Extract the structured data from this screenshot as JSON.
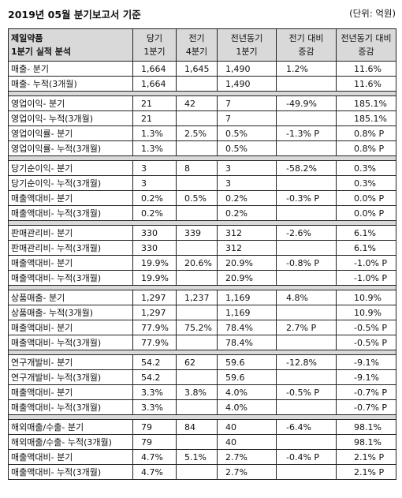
{
  "header": {
    "title": "2019년 05월 분기보고서 기준",
    "unit": "(단위: 억원)"
  },
  "columns": {
    "col0_line1": "제일약품",
    "col0_line2": "1분기 실적 분석",
    "col1_line1": "당기",
    "col1_line2": "1분기",
    "col2_line1": "전기",
    "col2_line2": "4분기",
    "col3_line1": "전년동기",
    "col3_line2": "1분기",
    "col4_line1": "전기 대비",
    "col4_line2": "증감",
    "col5_line1": "전년동기 대비",
    "col5_line2": "증감"
  },
  "groups": [
    {
      "rows": [
        [
          "매출- 분기",
          "1,664",
          "1,645",
          "1,490",
          "1.2%",
          "11.6%"
        ],
        [
          "매출- 누적(3개월)",
          "1,664",
          "",
          "1,490",
          "",
          "11.6%"
        ]
      ]
    },
    {
      "rows": [
        [
          "영업이익- 분기",
          "21",
          "42",
          "7",
          "-49.9%",
          "185.1%"
        ],
        [
          "영업이익- 누적(3개월)",
          "21",
          "",
          "7",
          "",
          "185.1%"
        ],
        [
          "영업이익률- 분기",
          "1.3%",
          "2.5%",
          "0.5%",
          "-1.3% P",
          "0.8% P"
        ],
        [
          "영업이익률- 누적(3개월)",
          "1.3%",
          "",
          "0.5%",
          "",
          "0.8% P"
        ]
      ]
    },
    {
      "rows": [
        [
          "당기순이익- 분기",
          "3",
          "8",
          "3",
          "-58.2%",
          "0.3%"
        ],
        [
          "당기순이익- 누적(3개월)",
          "3",
          "",
          "3",
          "",
          "0.3%"
        ],
        [
          "매출액대비- 분기",
          "0.2%",
          "0.5%",
          "0.2%",
          "-0.3% P",
          "0.0% P"
        ],
        [
          "매출액대비- 누적(3개월)",
          "0.2%",
          "",
          "0.2%",
          "",
          "0.0% P"
        ]
      ]
    },
    {
      "rows": [
        [
          "판매관리비- 분기",
          "330",
          "339",
          "312",
          "-2.6%",
          "6.1%"
        ],
        [
          "판매관리비- 누적(3개월)",
          "330",
          "",
          "312",
          "",
          "6.1%"
        ],
        [
          "매출액대비- 분기",
          "19.9%",
          "20.6%",
          "20.9%",
          "-0.8% P",
          "-1.0% P"
        ],
        [
          "매출액대비- 누적(3개월)",
          "19.9%",
          "",
          "20.9%",
          "",
          "-1.0% P"
        ]
      ]
    },
    {
      "rows": [
        [
          "상품매출- 분기",
          "1,297",
          "1,237",
          "1,169",
          "4.8%",
          "10.9%"
        ],
        [
          "상품매출- 누적(3개월)",
          "1,297",
          "",
          "1,169",
          "",
          "10.9%"
        ],
        [
          "매출액대비- 분기",
          "77.9%",
          "75.2%",
          "78.4%",
          "2.7% P",
          "-0.5% P"
        ],
        [
          "매출액대비- 누적(3개월)",
          "77.9%",
          "",
          "78.4%",
          "",
          "-0.5% P"
        ]
      ]
    },
    {
      "rows": [
        [
          "연구개발비- 분기",
          "54.2",
          "62",
          "59.6",
          "-12.8%",
          "-9.1%"
        ],
        [
          "연구개발비- 누적(3개월)",
          "54.2",
          "",
          "59.6",
          "",
          "-9.1%"
        ],
        [
          "매출액대비- 분기",
          "3.3%",
          "3.8%",
          "4.0%",
          "-0.5% P",
          "-0.7% P"
        ],
        [
          "매출액대비- 누적(3개월)",
          "3.3%",
          "",
          "4.0%",
          "",
          "-0.7% P"
        ]
      ]
    },
    {
      "rows": [
        [
          "해외매출/수출- 분기",
          "79",
          "84",
          "40",
          "-6.4%",
          "98.1%"
        ],
        [
          "해외매출/수출- 누적(3개월)",
          "79",
          "",
          "40",
          "",
          "98.1%"
        ],
        [
          "매출액대비- 분기",
          "4.7%",
          "5.1%",
          "2.7%",
          "-0.4% P",
          "2.1% P"
        ],
        [
          "매출액대비- 누적(3개월)",
          "4.7%",
          "",
          "2.7%",
          "",
          "2.1% P"
        ]
      ]
    }
  ]
}
